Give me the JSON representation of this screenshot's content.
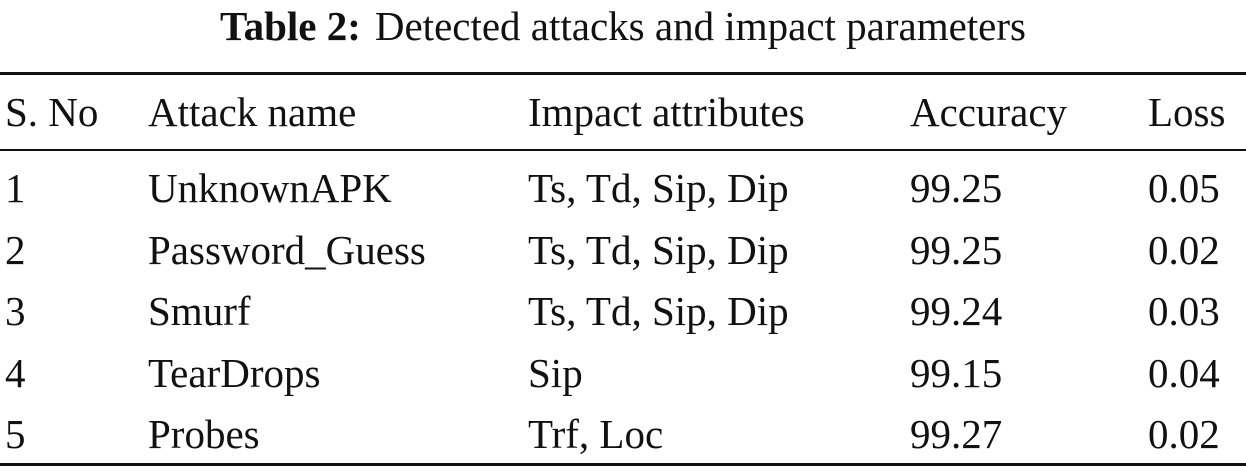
{
  "title": {
    "label": "Table 2:",
    "text": "Detected attacks and impact parameters"
  },
  "table": {
    "header": [
      "S. No",
      "Attack name",
      "Impact attributes",
      "Accuracy",
      "Loss"
    ],
    "rows": [
      [
        "1",
        "UnknownAPK",
        "Ts, Td, Sip, Dip",
        "99.25",
        "0.05"
      ],
      [
        "2",
        "Password_Guess",
        "Ts, Td, Sip, Dip",
        "99.25",
        "0.02"
      ],
      [
        "3",
        "Smurf",
        "Ts, Td, Sip, Dip",
        "99.24",
        "0.03"
      ],
      [
        "4",
        "TearDrops",
        "Sip",
        "99.15",
        "0.04"
      ],
      [
        "5",
        "Probes",
        "Trf, Loc",
        "99.27",
        "0.02"
      ]
    ]
  }
}
